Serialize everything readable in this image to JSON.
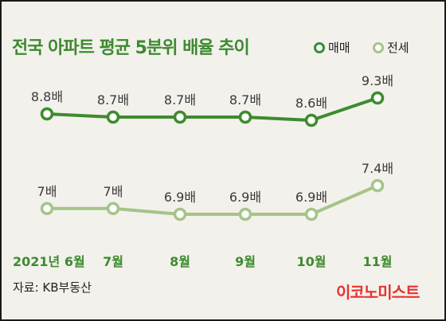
{
  "title": "전국 아파트 평균 5분위 배율 추이",
  "legend": {
    "sale": "매매",
    "jeonse": "전세"
  },
  "source": "자료: KB부동산",
  "brand": "이코노미스트",
  "colors": {
    "sale": "#3d8b2f",
    "jeonse": "#a6c489",
    "brand": "#e8322f",
    "background": "#f3f1ec"
  },
  "chart_data": {
    "type": "line",
    "title": "전국 아파트 평균 5분위 배율 추이",
    "categories": [
      "2021년 6월",
      "7월",
      "8월",
      "9월",
      "10월",
      "11월"
    ],
    "series": [
      {
        "name": "매매",
        "values": [
          8.8,
          8.7,
          8.7,
          8.7,
          8.6,
          9.3
        ],
        "labels": [
          "8.8배",
          "8.7배",
          "8.7배",
          "8.7배",
          "8.6배",
          "9.3배"
        ]
      },
      {
        "name": "전세",
        "values": [
          7.0,
          7.0,
          6.9,
          6.9,
          6.9,
          7.4
        ],
        "labels": [
          "7배",
          "7배",
          "6.9배",
          "6.9배",
          "6.9배",
          "7.4배"
        ]
      }
    ],
    "legend_position": "top-right",
    "grid": false,
    "show_y_axis": false
  }
}
